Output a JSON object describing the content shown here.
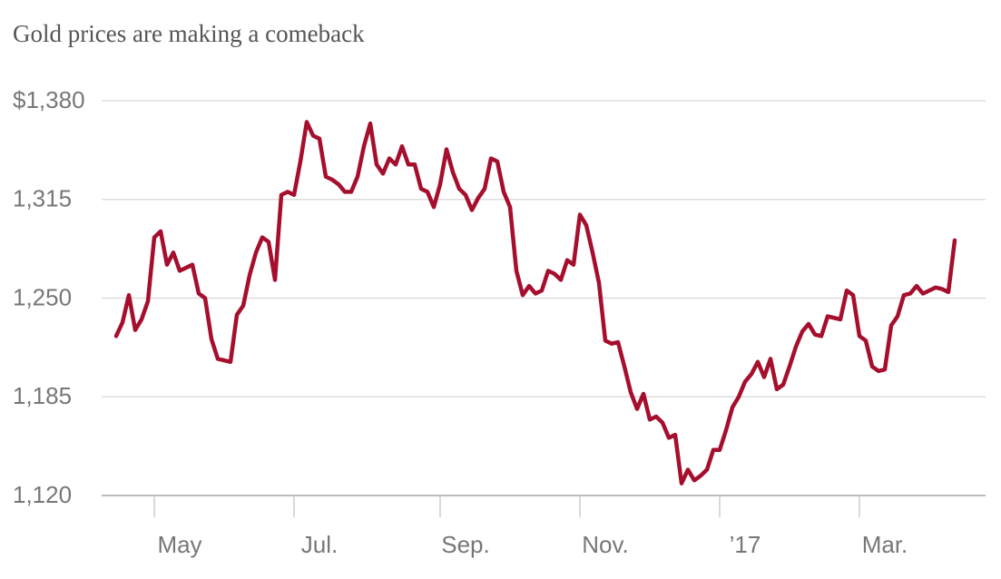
{
  "chart_data": {
    "type": "line",
    "title": "Gold prices are making a comeback",
    "categories": [
      null,
      null,
      null,
      null,
      null,
      null,
      "May",
      null,
      null,
      null,
      null,
      null,
      null,
      null,
      null,
      null,
      null,
      null,
      null,
      null,
      null,
      null,
      null,
      null,
      null,
      null,
      null,
      null,
      "Jul.",
      null,
      null,
      null,
      null,
      null,
      null,
      null,
      null,
      null,
      null,
      null,
      null,
      null,
      null,
      null,
      null,
      null,
      null,
      null,
      null,
      null,
      null,
      "Sep.",
      null,
      null,
      null,
      null,
      null,
      null,
      null,
      null,
      null,
      null,
      null,
      null,
      null,
      null,
      null,
      null,
      null,
      null,
      null,
      null,
      null,
      "Nov.",
      null,
      null,
      null,
      null,
      null,
      null,
      null,
      null,
      null,
      null,
      null,
      null,
      null,
      null,
      null,
      null,
      null,
      null,
      null,
      null,
      null,
      "’17",
      null,
      null,
      null,
      null,
      null,
      null,
      null,
      null,
      null,
      null,
      null,
      null,
      null,
      null,
      null,
      null,
      null,
      null,
      null,
      null,
      null,
      "Mar.",
      null,
      null,
      null,
      null,
      null,
      null,
      null,
      null,
      null,
      null,
      null,
      null,
      null,
      null,
      null
    ],
    "values": [
      1225,
      1234,
      1252,
      1229,
      1236,
      1248,
      1290,
      1294,
      1272,
      1280,
      1268,
      1270,
      1272,
      1253,
      1250,
      1223,
      1210,
      1209,
      1208,
      1239,
      1245,
      1265,
      1280,
      1290,
      1287,
      1262,
      1318,
      1320,
      1318,
      1340,
      1366,
      1357,
      1355,
      1330,
      1328,
      1325,
      1320,
      1320,
      1330,
      1350,
      1365,
      1338,
      1332,
      1342,
      1338,
      1350,
      1338,
      1338,
      1322,
      1320,
      1310,
      1325,
      1348,
      1333,
      1322,
      1318,
      1308,
      1316,
      1322,
      1342,
      1340,
      1320,
      1310,
      1268,
      1252,
      1258,
      1253,
      1255,
      1268,
      1266,
      1262,
      1275,
      1272,
      1305,
      1298,
      1280,
      1260,
      1222,
      1220,
      1221,
      1205,
      1188,
      1177,
      1187,
      1170,
      1172,
      1168,
      1158,
      1160,
      1128,
      1137,
      1130,
      1133,
      1137,
      1150,
      1150,
      1163,
      1178,
      1185,
      1195,
      1200,
      1208,
      1198,
      1210,
      1190,
      1193,
      1205,
      1218,
      1228,
      1233,
      1226,
      1225,
      1238,
      1237,
      1236,
      1255,
      1252,
      1225,
      1222,
      1205,
      1202,
      1203,
      1232,
      1238,
      1252,
      1253,
      1258,
      1253,
      1255,
      1257,
      1256,
      1254,
      1288
    ],
    "color": "#a50f2d",
    "ylim": [
      1120,
      1380
    ],
    "yticks": [
      {
        "value": 1120,
        "label": "1,120"
      },
      {
        "value": 1185,
        "label": "1,185"
      },
      {
        "value": 1250,
        "label": "1,250"
      },
      {
        "value": 1315,
        "label": "1,315"
      },
      {
        "value": 1380,
        "label": "$1,380"
      }
    ],
    "grid": true
  }
}
